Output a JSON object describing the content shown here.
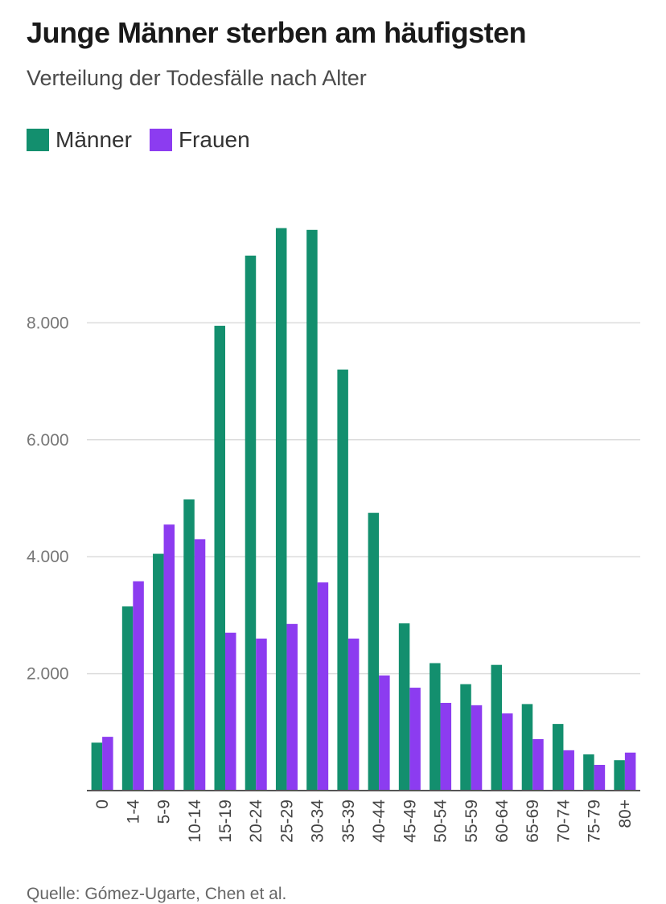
{
  "title": "Junge Männer sterben am häufigsten",
  "subtitle": "Verteilung der Todesfälle nach Alter",
  "source": "Quelle: Gómez-Ugarte, Chen et al.",
  "colors": {
    "maenner": "#138f6e",
    "frauen": "#8c3cf0",
    "grid": "#dcdcdc",
    "axis": "#555555"
  },
  "chart_data": {
    "type": "bar",
    "title": "Junge Männer sterben am häufigsten",
    "subtitle": "Verteilung der Todesfälle nach Alter",
    "categories": [
      "0",
      "1-4",
      "5-9",
      "10-14",
      "15-19",
      "20-24",
      "25-29",
      "30-34",
      "35-39",
      "40-44",
      "45-49",
      "50-54",
      "55-59",
      "60-64",
      "65-69",
      "70-74",
      "75-79",
      "80+"
    ],
    "series": [
      {
        "name": "Männer",
        "color": "#138f6e",
        "values": [
          820,
          3150,
          4050,
          4980,
          7950,
          9150,
          9620,
          9590,
          7200,
          4750,
          2860,
          2180,
          1820,
          2150,
          1480,
          1140,
          620,
          520
        ]
      },
      {
        "name": "Frauen",
        "color": "#8c3cf0",
        "values": [
          920,
          3580,
          4550,
          4300,
          2700,
          2600,
          2850,
          3560,
          2600,
          1970,
          1760,
          1500,
          1460,
          1320,
          880,
          690,
          440,
          650
        ]
      }
    ],
    "yticks": [
      2000,
      4000,
      6000,
      8000
    ],
    "ytick_labels": [
      "2.000",
      "4.000",
      "6.000",
      "8.000"
    ],
    "ylim": [
      0,
      10000
    ],
    "grid": true,
    "legend_position": "top-left"
  }
}
